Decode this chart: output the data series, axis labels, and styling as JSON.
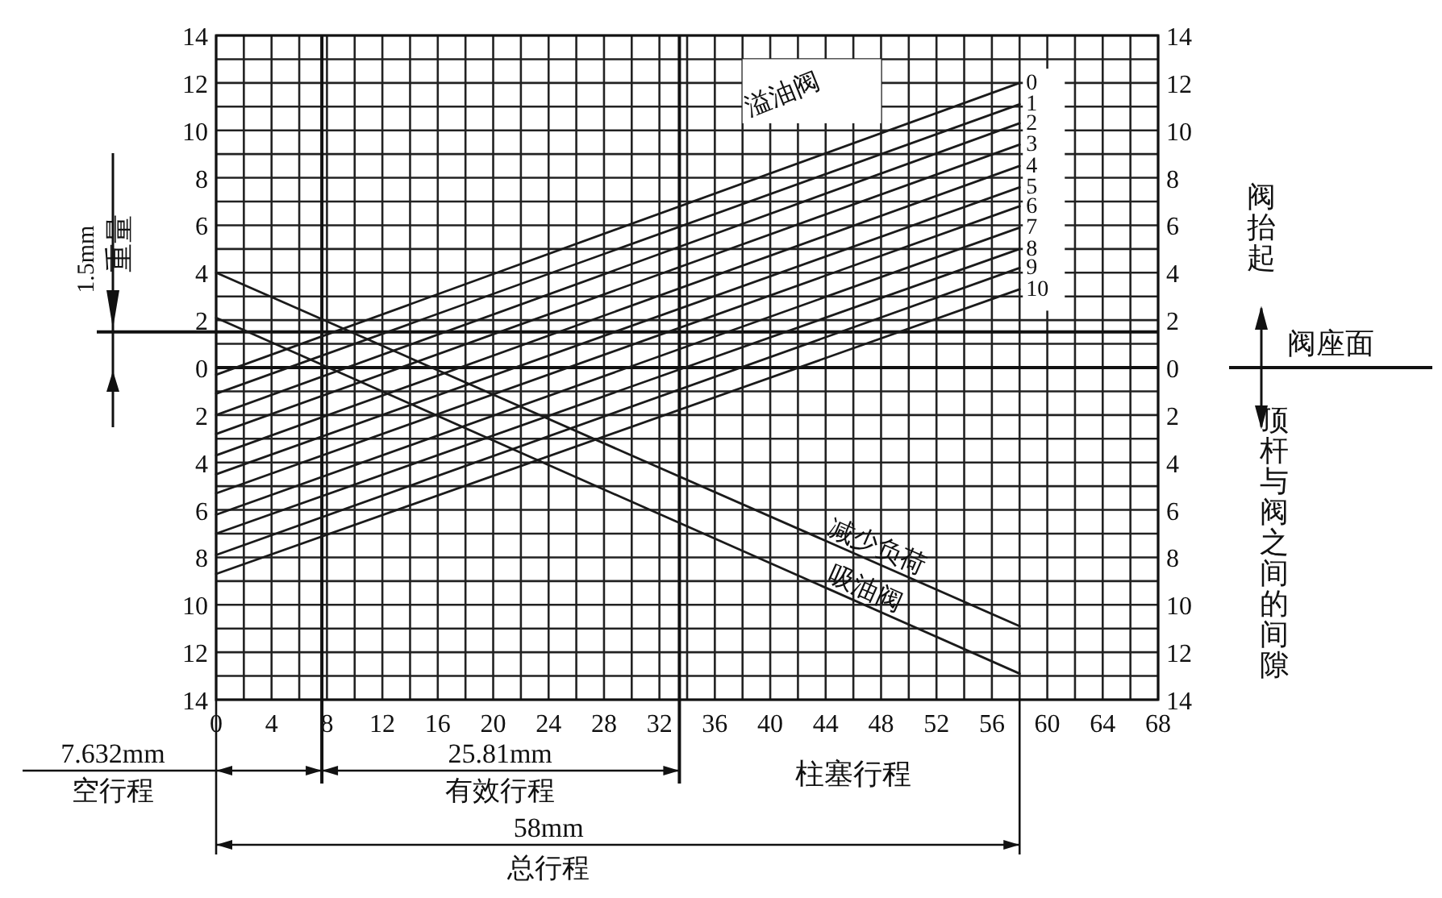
{
  "chart_data": {
    "type": "line",
    "xlabel": "柱塞行程",
    "y2label": "顶杆与阀之间的间隙",
    "annotations": [
      "重量",
      "阀抬起",
      "阀座面",
      "7.632mm",
      "空行程",
      "25.81mm",
      "有效行程",
      "58mm",
      "总行程",
      "溢油阀"
    ],
    "x": [
      0,
      58
    ],
    "series": [
      {
        "name": "0",
        "color": "#1a1a1a",
        "values": [
          -0.3,
          12
        ]
      },
      {
        "name": "1",
        "color": "#1a1a1a",
        "values": [
          -1.1,
          11.1
        ]
      },
      {
        "name": "2",
        "color": "#1a1a1a",
        "values": [
          -2,
          10.3
        ]
      },
      {
        "name": "3",
        "color": "#1a1a1a",
        "values": [
          -2.8,
          9.4
        ]
      },
      {
        "name": "4",
        "color": "#1a1a1a",
        "values": [
          -3.7,
          8.5
        ]
      },
      {
        "name": "5",
        "color": "#1a1a1a",
        "values": [
          -4.5,
          7.6
        ]
      },
      {
        "name": "6",
        "color": "#1a1a1a",
        "values": [
          -5.3,
          6.8
        ]
      },
      {
        "name": "7",
        "color": "#1a1a1a",
        "values": [
          -6.2,
          5.9
        ]
      },
      {
        "name": "8",
        "color": "#1a1a1a",
        "values": [
          -7,
          5
        ]
      },
      {
        "name": "9",
        "color": "#1a1a1a",
        "values": [
          -7.9,
          4.2
        ]
      },
      {
        "name": "10",
        "color": "#1a1a1a",
        "values": [
          -8.7,
          3.3
        ]
      },
      {
        "name": "减少负荷",
        "color": "#1a1a1a",
        "values": [
          4,
          -10.9
        ]
      },
      {
        "name": "吸油阀",
        "color": "#1a1a1a",
        "values": [
          2.1,
          -12.9
        ]
      }
    ],
    "xlim": [
      0,
      68
    ],
    "xticks": [
      0,
      {
        "value": 2,
        "label": null
      },
      4,
      {
        "value": 6,
        "label": null
      },
      8,
      {
        "value": 10,
        "label": null
      },
      12,
      {
        "value": 14,
        "label": null
      },
      16,
      {
        "value": 18,
        "label": null
      },
      20,
      {
        "value": 22,
        "label": null
      },
      24,
      {
        "value": 26,
        "label": null
      },
      28,
      {
        "value": 30,
        "label": null
      },
      32,
      {
        "value": 34,
        "label": null
      },
      36,
      {
        "value": 38,
        "label": null
      },
      40,
      {
        "value": 42,
        "label": null
      },
      44,
      {
        "value": 46,
        "label": null
      },
      48,
      {
        "value": 50,
        "label": null
      },
      52,
      {
        "value": 54,
        "label": null
      },
      56,
      {
        "value": 58,
        "label": null
      },
      60,
      {
        "value": 62,
        "label": null
      },
      64,
      {
        "value": 66,
        "label": null
      },
      68
    ],
    "ylim": [
      -14,
      14
    ],
    "yticks": [
      {
        "value": -14,
        "label": "14"
      },
      {
        "value": -13,
        "label": null
      },
      {
        "value": -12,
        "label": "12"
      },
      {
        "value": -11,
        "label": null
      },
      {
        "value": -10,
        "label": "10"
      },
      {
        "value": -9,
        "label": null
      },
      {
        "value": -8,
        "label": "8"
      },
      {
        "value": -7,
        "label": null
      },
      {
        "value": -6,
        "label": "6"
      },
      {
        "value": -5,
        "label": null
      },
      {
        "value": -4,
        "label": "4"
      },
      {
        "value": -3,
        "label": null
      },
      {
        "value": -2,
        "label": "2"
      },
      {
        "value": -1,
        "label": null
      },
      0,
      {
        "value": 1,
        "label": null
      },
      2,
      {
        "value": 3,
        "label": null
      },
      4,
      {
        "value": 5,
        "label": null
      },
      6,
      {
        "value": 7,
        "label": null
      },
      8,
      {
        "value": 9,
        "label": null
      },
      10,
      {
        "value": 11,
        "label": null
      },
      12,
      {
        "value": 13,
        "label": null
      },
      14
    ],
    "y2lim": [
      -14,
      14
    ],
    "y2ticks": [
      {
        "value": -14,
        "label": "14"
      },
      {
        "value": -12,
        "label": "12"
      },
      {
        "value": -10,
        "label": "10"
      },
      {
        "value": -8,
        "label": "8"
      },
      {
        "value": -6,
        "label": "6"
      },
      {
        "value": -4,
        "label": "4"
      },
      {
        "value": -2,
        "label": "2"
      },
      0,
      2,
      4,
      6,
      8,
      10,
      12,
      14
    ],
    "ref_lines": [
      {
        "axis": "x",
        "value": 7.632
      },
      {
        "axis": "x",
        "value": 33.442
      },
      {
        "axis": "y",
        "value": 0
      },
      {
        "axis": "y",
        "value": 1.5,
        "label": "1.5mm"
      }
    ],
    "grid": true,
    "marker": "none",
    "line_style": "solid"
  }
}
